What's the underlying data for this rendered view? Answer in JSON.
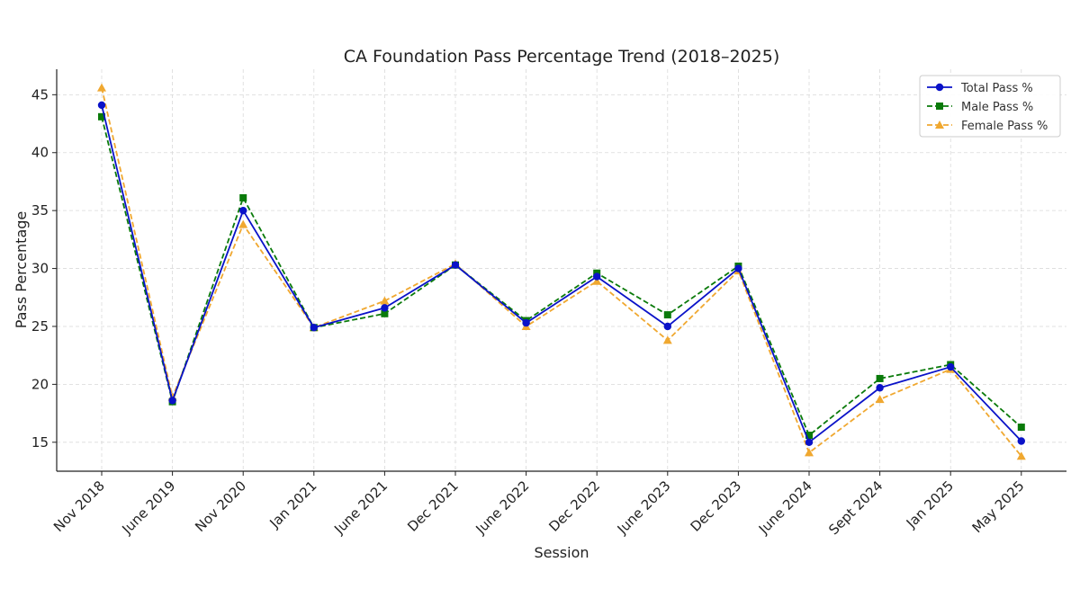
{
  "chart_data": {
    "type": "line",
    "title": "CA Foundation Pass Percentage Trend (2018–2025)",
    "xlabel": "Session",
    "ylabel": "Pass Percentage",
    "categories": [
      "Nov 2018",
      "June 2019",
      "Nov 2020",
      "Jan 2021",
      "June 2021",
      "Dec 2021",
      "June 2022",
      "Dec 2022",
      "June 2023",
      "Dec 2023",
      "June 2024",
      "Sept 2024",
      "Jan 2025",
      "May 2025"
    ],
    "yticks": [
      15,
      20,
      25,
      30,
      35,
      40,
      45
    ],
    "ylim": [
      12.5,
      47.2
    ],
    "grid": true,
    "legend_position": "top-right",
    "series": [
      {
        "name": "Total Pass %",
        "color": "#0a12c8",
        "line_style": "solid",
        "marker": "circle",
        "values": [
          44.1,
          18.6,
          35.0,
          24.9,
          26.6,
          30.3,
          25.3,
          29.3,
          25.0,
          30.0,
          15.0,
          19.7,
          21.5,
          15.1
        ]
      },
      {
        "name": "Male Pass %",
        "color": "#0a7a0a",
        "line_style": "dashed",
        "marker": "square",
        "values": [
          43.1,
          18.5,
          36.1,
          24.9,
          26.1,
          30.3,
          25.5,
          29.6,
          26.0,
          30.2,
          15.6,
          20.5,
          21.7,
          16.3
        ]
      },
      {
        "name": "Female Pass %",
        "color": "#f0a830",
        "line_style": "dashed",
        "marker": "triangle",
        "values": [
          45.6,
          18.9,
          33.8,
          24.9,
          27.2,
          30.4,
          25.0,
          28.9,
          23.8,
          29.8,
          14.1,
          18.7,
          21.3,
          13.8
        ]
      }
    ]
  }
}
